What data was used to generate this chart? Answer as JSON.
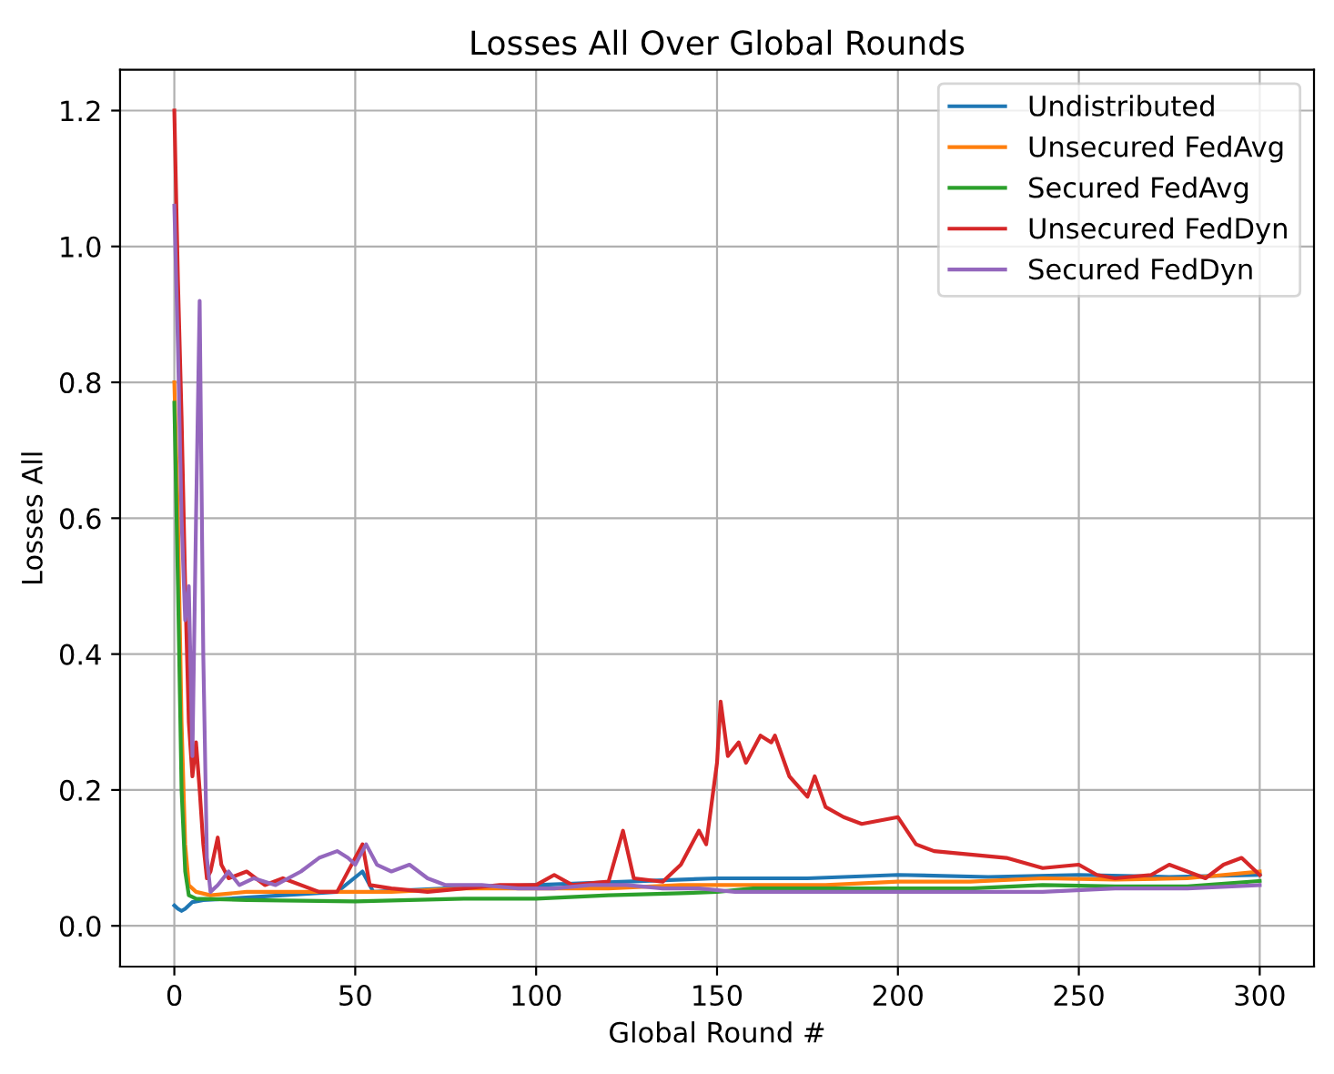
{
  "chart_data": {
    "type": "line",
    "title": "Losses All Over Global Rounds",
    "xlabel": "Global Round #",
    "ylabel": "Losses All",
    "xlim": [
      -15,
      315
    ],
    "ylim": [
      -0.06,
      1.26
    ],
    "xticks": [
      0,
      50,
      100,
      150,
      200,
      250,
      300
    ],
    "yticks": [
      {
        "value": 0,
        "label": "0.0"
      },
      {
        "value": 0.2,
        "label": "0.2"
      },
      {
        "value": 0.4,
        "label": "0.4"
      },
      {
        "value": 0.6,
        "label": "0.6"
      },
      {
        "value": 0.8,
        "label": "0.8"
      },
      {
        "value": 1.0,
        "label": "1.0"
      },
      {
        "value": 1.2,
        "label": "1.2"
      }
    ],
    "grid": true,
    "legend": "top right",
    "series": [
      {
        "name": "Undistributed",
        "color": "#1f77b4",
        "x": [
          0,
          1,
          2,
          3,
          5,
          8,
          15,
          30,
          45,
          52,
          55,
          75,
          100,
          125,
          150,
          175,
          200,
          225,
          250,
          275,
          300
        ],
        "values": [
          0.03,
          0.025,
          0.022,
          0.025,
          0.035,
          0.038,
          0.04,
          0.045,
          0.05,
          0.08,
          0.05,
          0.055,
          0.06,
          0.065,
          0.07,
          0.07,
          0.075,
          0.072,
          0.075,
          0.072,
          0.075
        ]
      },
      {
        "name": "Unsecured FedAvg",
        "color": "#ff7f0e",
        "x": [
          0,
          1,
          2,
          3,
          4,
          6,
          10,
          20,
          40,
          60,
          80,
          100,
          120,
          140,
          160,
          180,
          200,
          220,
          240,
          260,
          280,
          300
        ],
        "values": [
          0.8,
          0.6,
          0.3,
          0.12,
          0.06,
          0.05,
          0.045,
          0.05,
          0.05,
          0.05,
          0.055,
          0.055,
          0.055,
          0.06,
          0.06,
          0.06,
          0.065,
          0.065,
          0.07,
          0.068,
          0.07,
          0.08
        ]
      },
      {
        "name": "Secured FedAvg",
        "color": "#2ca02c",
        "x": [
          0,
          1,
          2,
          3,
          4,
          6,
          20,
          50,
          80,
          100,
          120,
          140,
          150,
          160,
          180,
          200,
          220,
          240,
          260,
          280,
          300
        ],
        "values": [
          0.77,
          0.5,
          0.2,
          0.08,
          0.045,
          0.04,
          0.038,
          0.036,
          0.04,
          0.04,
          0.045,
          0.048,
          0.05,
          0.055,
          0.055,
          0.055,
          0.055,
          0.06,
          0.058,
          0.058,
          0.066
        ]
      },
      {
        "name": "Unsecured FedDyn",
        "color": "#d62728",
        "x": [
          0,
          1,
          2,
          3,
          4,
          5,
          6,
          7,
          8,
          9,
          10,
          12,
          13,
          15,
          20,
          25,
          30,
          40,
          45,
          52,
          54,
          60,
          70,
          80,
          90,
          100,
          105,
          110,
          120,
          124,
          127,
          135,
          140,
          145,
          147,
          150,
          151,
          153,
          156,
          158,
          162,
          165,
          166,
          170,
          175,
          177,
          180,
          185,
          190,
          195,
          200,
          205,
          210,
          220,
          230,
          240,
          250,
          255,
          260,
          270,
          275,
          285,
          290,
          295,
          300
        ],
        "values": [
          1.2,
          0.95,
          0.75,
          0.5,
          0.3,
          0.22,
          0.27,
          0.2,
          0.12,
          0.07,
          0.08,
          0.13,
          0.09,
          0.07,
          0.08,
          0.06,
          0.07,
          0.05,
          0.05,
          0.12,
          0.06,
          0.055,
          0.05,
          0.055,
          0.06,
          0.06,
          0.075,
          0.06,
          0.065,
          0.14,
          0.07,
          0.065,
          0.09,
          0.14,
          0.12,
          0.24,
          0.33,
          0.25,
          0.27,
          0.24,
          0.28,
          0.27,
          0.28,
          0.22,
          0.19,
          0.22,
          0.175,
          0.16,
          0.15,
          0.155,
          0.16,
          0.12,
          0.11,
          0.105,
          0.1,
          0.085,
          0.09,
          0.075,
          0.07,
          0.075,
          0.09,
          0.07,
          0.09,
          0.1,
          0.075
        ]
      },
      {
        "name": "Secured FedDyn",
        "color": "#9467bd",
        "x": [
          0,
          1,
          2,
          3,
          4,
          5,
          6,
          7,
          8,
          9,
          10,
          12,
          15,
          18,
          22,
          28,
          35,
          40,
          45,
          48,
          50,
          53,
          56,
          60,
          65,
          70,
          75,
          85,
          95,
          105,
          115,
          125,
          135,
          145,
          155,
          165,
          180,
          200,
          220,
          240,
          260,
          280,
          300
        ],
        "values": [
          1.06,
          0.85,
          0.6,
          0.45,
          0.5,
          0.25,
          0.6,
          0.92,
          0.4,
          0.1,
          0.05,
          0.06,
          0.08,
          0.06,
          0.07,
          0.06,
          0.08,
          0.1,
          0.11,
          0.1,
          0.09,
          0.12,
          0.09,
          0.08,
          0.09,
          0.07,
          0.06,
          0.06,
          0.055,
          0.055,
          0.06,
          0.06,
          0.055,
          0.055,
          0.05,
          0.05,
          0.05,
          0.05,
          0.05,
          0.05,
          0.055,
          0.055,
          0.06
        ]
      }
    ]
  }
}
